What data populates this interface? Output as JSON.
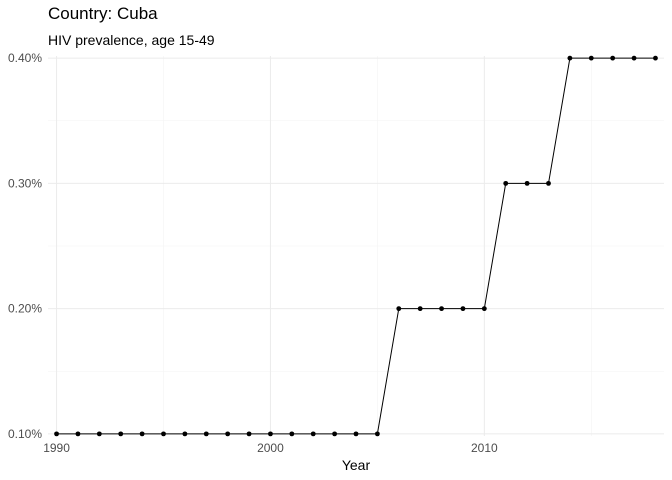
{
  "chart_data": {
    "type": "line",
    "title": "Country: Cuba",
    "subtitle": "HIV prevalence, age 15-49",
    "xlabel": "Year",
    "ylabel": "",
    "xlim": [
      1989.6,
      2018.4
    ],
    "ylim": [
      0.0983,
      0.4017
    ],
    "x_ticks": [
      1990,
      2000,
      2010
    ],
    "y_ticks": [
      0.1,
      0.2,
      0.3,
      0.4
    ],
    "y_tick_labels": [
      "0.10%",
      "0.20%",
      "0.30%",
      "0.40%"
    ],
    "grid": true,
    "legend": "none",
    "series": [
      {
        "x": [
          1990,
          1991,
          1992,
          1993,
          1994,
          1995,
          1996,
          1997,
          1998,
          1999,
          2000,
          2001,
          2002,
          2003,
          2004,
          2005,
          2006,
          2007,
          2008,
          2009,
          2010,
          2011,
          2012,
          2013,
          2014,
          2015,
          2016,
          2017,
          2018
        ],
        "values": [
          0.1,
          0.1,
          0.1,
          0.1,
          0.1,
          0.1,
          0.1,
          0.1,
          0.1,
          0.1,
          0.1,
          0.1,
          0.1,
          0.1,
          0.1,
          0.1,
          0.2,
          0.2,
          0.2,
          0.2,
          0.2,
          0.3,
          0.3,
          0.3,
          0.4,
          0.4,
          0.4,
          0.4,
          0.4
        ]
      }
    ],
    "colors": {
      "line": "#000000",
      "grid_major": "#ebebeb",
      "grid_minor": "#f3f3f3"
    }
  }
}
